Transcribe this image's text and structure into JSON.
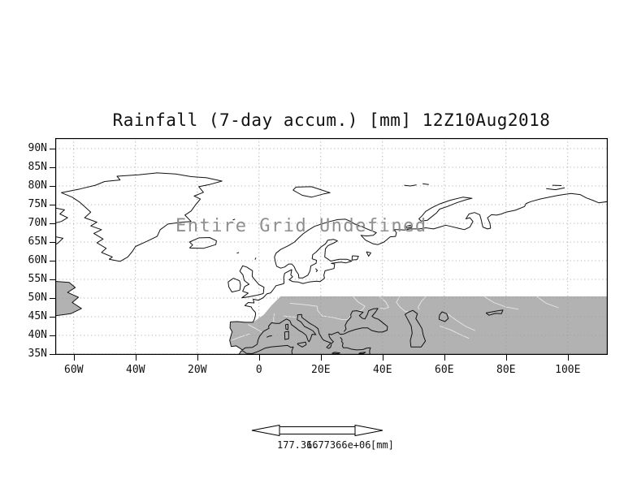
{
  "figure": {
    "title": "Rainfall (7-day accum.) [mm] 12Z10Aug2018",
    "overlay_message": "Entire Grid Undefined"
  },
  "axes": {
    "lat_labels": [
      "90N",
      "85N",
      "80N",
      "75N",
      "70N",
      "65N",
      "60N",
      "55N",
      "50N",
      "45N",
      "40N",
      "35N"
    ],
    "lon_labels": [
      "60W",
      "40W",
      "20W",
      "0",
      "20E",
      "40E",
      "60E",
      "80E",
      "100E"
    ]
  },
  "colorbar": {
    "min_label": "177.366",
    "max_label": "1.77366e+06",
    "units_label": "[mm]"
  },
  "colors": {
    "undefined_shade": "#b2b2b2",
    "grid_dots": "#9a9a9a",
    "coastline": "#111111",
    "overlay_text": "#8f8f8f",
    "frame": "#000000"
  }
}
